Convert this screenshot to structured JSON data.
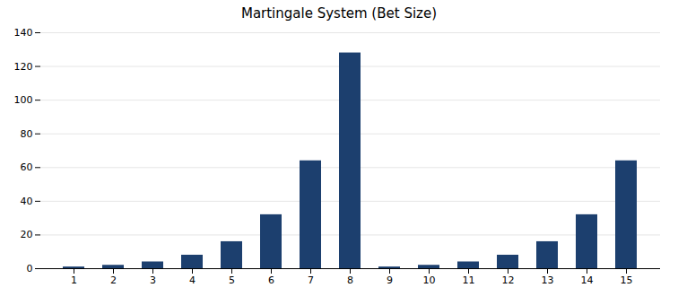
{
  "chart_data": {
    "type": "bar",
    "title": "Martingale System (Bet Size)",
    "categories": [
      1,
      2,
      3,
      4,
      5,
      6,
      7,
      8,
      9,
      10,
      11,
      12,
      13,
      14,
      15
    ],
    "values": [
      1,
      2,
      4,
      8,
      16,
      32,
      64,
      128,
      1,
      2,
      4,
      8,
      16,
      32,
      64
    ],
    "color": "#1c3f6e",
    "ylim": [
      0,
      140
    ],
    "yticks": [
      0,
      20,
      40,
      60,
      80,
      100,
      120,
      140
    ],
    "grid": true
  }
}
